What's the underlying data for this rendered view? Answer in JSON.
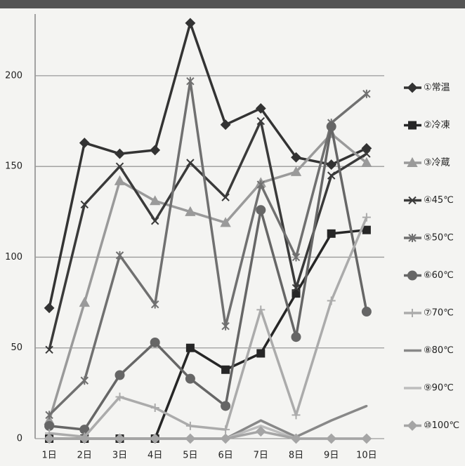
{
  "chart_data": {
    "type": "line",
    "categories": [
      "1日",
      "2日",
      "3日",
      "4日",
      "5日",
      "6日",
      "7日",
      "8日",
      "9日",
      "10日"
    ],
    "series": [
      {
        "name": "①常温",
        "color": "#333333",
        "values": [
          72,
          163,
          157,
          159,
          229,
          173,
          182,
          155,
          151,
          160
        ]
      },
      {
        "name": "②冷凍",
        "color": "#262626",
        "values": [
          0,
          0,
          0,
          0,
          50,
          38,
          47,
          80,
          113,
          115
        ]
      },
      {
        "name": "③冷蔵",
        "color": "#9a9a9a",
        "values": [
          10,
          75,
          142,
          131,
          125,
          119,
          141,
          147,
          168,
          152
        ]
      },
      {
        "name": "④45℃",
        "color": "#3a3a3a",
        "values": [
          49,
          129,
          150,
          120,
          152,
          133,
          175,
          83,
          145,
          157
        ]
      },
      {
        "name": "⑤50℃",
        "color": "#707070",
        "values": [
          13,
          32,
          101,
          74,
          197,
          62,
          140,
          100,
          174,
          190
        ]
      },
      {
        "name": "⑥60℃",
        "color": "#666666",
        "values": [
          7,
          5,
          35,
          53,
          33,
          18,
          126,
          56,
          172,
          70
        ]
      },
      {
        "name": "⑦70℃",
        "color": "#ababab",
        "values": [
          3,
          1,
          23,
          17,
          7,
          5,
          71,
          13,
          76,
          122
        ]
      },
      {
        "name": "⑧80℃",
        "color": "#888888",
        "values": [
          0,
          0,
          0,
          0,
          0,
          0,
          10,
          1,
          10,
          18
        ]
      },
      {
        "name": "⑨90℃",
        "color": "#bdbdbd",
        "values": [
          0,
          0,
          0,
          0,
          0,
          0,
          7,
          0,
          0,
          0
        ]
      },
      {
        "name": "⑩100℃",
        "color": "#a5a5a5",
        "values": [
          0,
          0,
          0,
          0,
          0,
          0,
          4,
          0,
          0,
          0
        ]
      }
    ],
    "ylim": [
      0,
      234
    ],
    "yticks": [
      0,
      50,
      100,
      150,
      200
    ],
    "grid": true,
    "legend": "right"
  }
}
